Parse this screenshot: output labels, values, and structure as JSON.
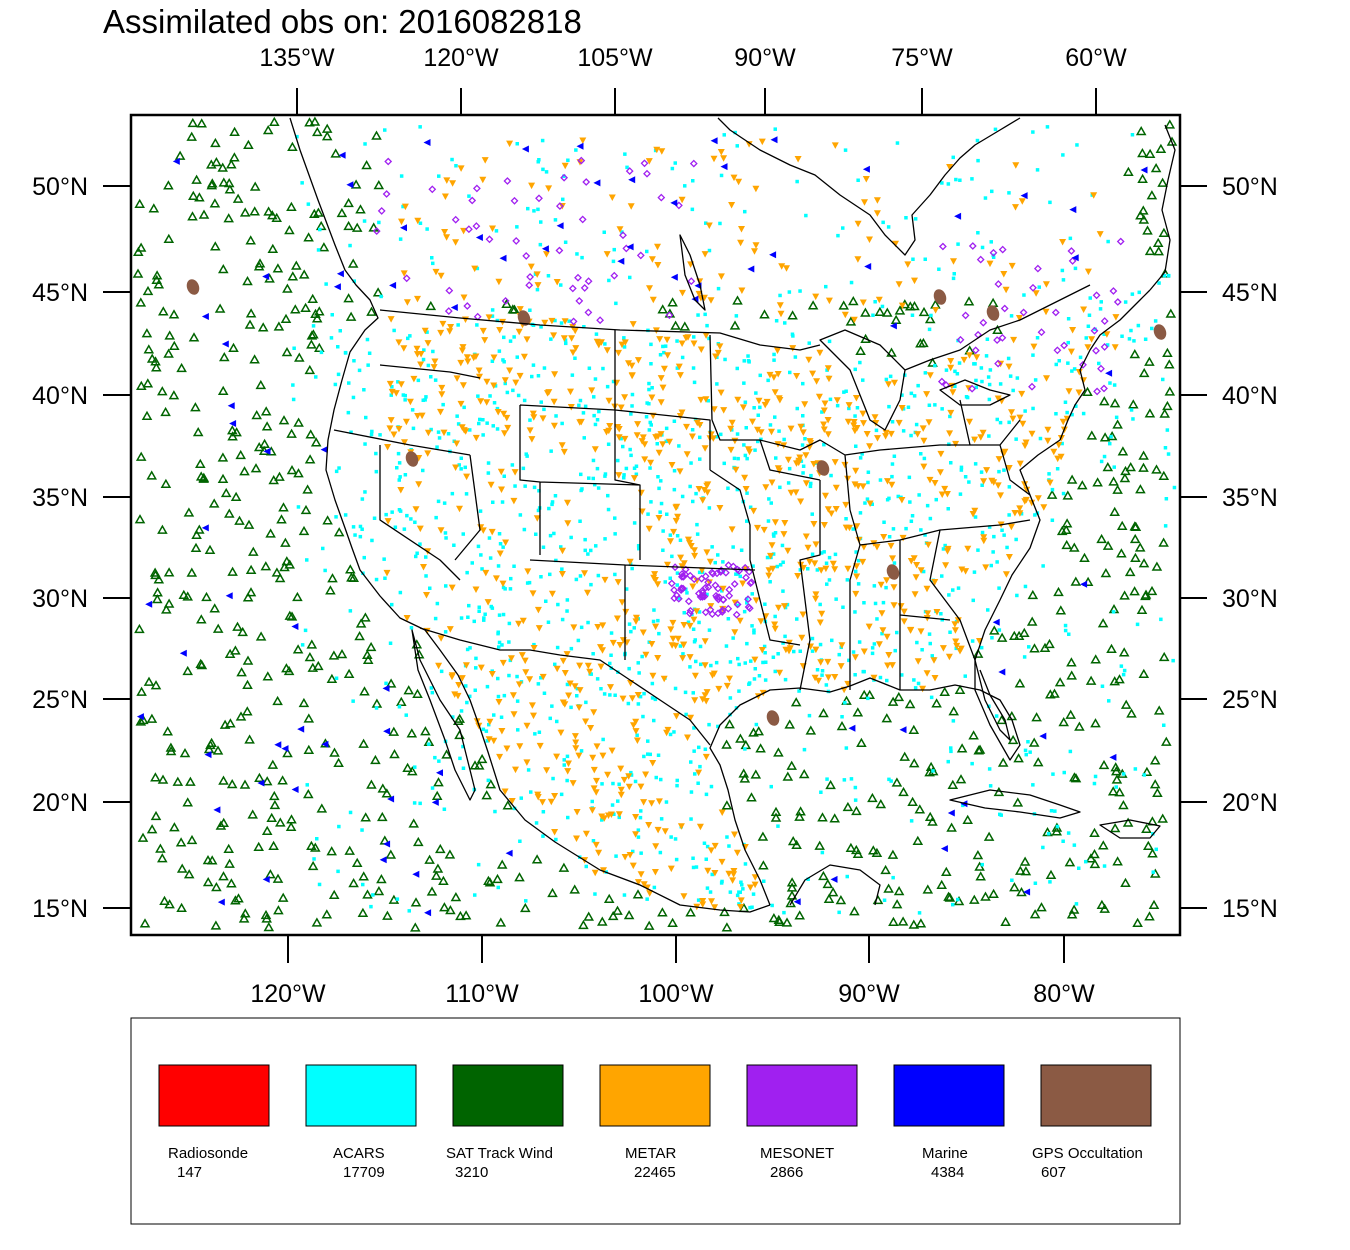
{
  "title": "Assimilated obs on: 2016082818",
  "map": {
    "top_lon_labels": [
      "135°W",
      "120°W",
      "105°W",
      "90°W",
      "75°W",
      "60°W"
    ],
    "bottom_lon_labels": [
      "120°W",
      "110°W",
      "100°W",
      "90°W",
      "80°W"
    ],
    "lat_labels": [
      "50°N",
      "45°N",
      "40°N",
      "35°N",
      "30°N",
      "25°N",
      "20°N",
      "15°N"
    ],
    "background_color": "#ffffff",
    "boundary_color": "#000000"
  },
  "legend": {
    "items": [
      {
        "name": "Radiosonde",
        "count": "147",
        "color": "#ff0000",
        "marker": "none"
      },
      {
        "name": "ACARS",
        "count": "17709",
        "color": "#00ffff",
        "marker": "square-dot"
      },
      {
        "name": "SAT Track Wind",
        "count": "3210",
        "color": "#006400",
        "marker": "hollow-triangle-up"
      },
      {
        "name": "METAR",
        "count": "22465",
        "color": "#ffa500",
        "marker": "triangle-down"
      },
      {
        "name": "MESONET",
        "count": "2866",
        "color": "#a020f0",
        "marker": "hollow-diamond"
      },
      {
        "name": "Marine",
        "count": "4384",
        "color": "#0000ff",
        "marker": "triangle-left"
      },
      {
        "name": "GPS Occultation",
        "count": "607",
        "color": "#8b5a44",
        "marker": "blob"
      }
    ]
  }
}
